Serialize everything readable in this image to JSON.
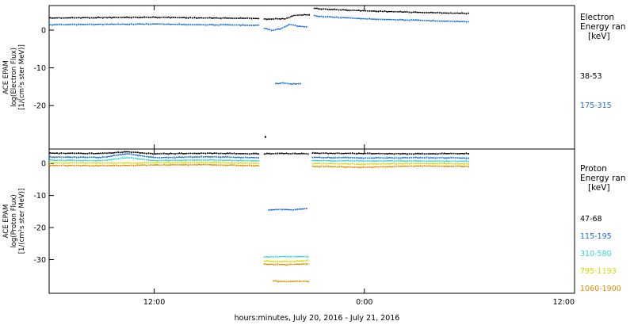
{
  "chart_data": [
    {
      "type": "scatter",
      "ylabel": [
        "ACE EPAM",
        "log(Electron Flux)",
        "[1/(cm²s ster MeV)]"
      ],
      "ylim": [
        -31.5,
        6.5
      ],
      "yticks": [
        0,
        -10,
        -20
      ],
      "legend_title": [
        "Electron",
        "Energy ran",
        "[keV]"
      ],
      "x_ticks": [
        "12:00",
        "0:00",
        "12:00"
      ],
      "series": [
        {
          "name": "38-53",
          "color": "#000000",
          "segments": [
            {
              "x": [
                0.0,
                6.0,
                12.0,
                18.0,
                24.0
              ],
              "y": [
                3.2,
                3.3,
                3.4,
                3.2,
                3.1
              ]
            },
            {
              "x": [
                24.5,
                26.0,
                27.0,
                28.0,
                29.0,
                29.8
              ],
              "y": [
                2.9,
                3.0,
                3.0,
                3.9,
                4.0,
                4.1
              ]
            },
            {
              "x": [
                30.2,
                31.0,
                36.0,
                42.0,
                48.0
              ],
              "y": [
                5.8,
                5.6,
                5.1,
                4.7,
                4.4
              ]
            },
            {
              "x": [
                24.7
              ],
              "y": [
                -28.3
              ]
            }
          ]
        },
        {
          "name": "175-315",
          "color": "#1a6fd0",
          "segments": [
            {
              "x": [
                0.0,
                6.0,
                12.0,
                18.0,
                24.0
              ],
              "y": [
                1.4,
                1.5,
                1.6,
                1.4,
                1.3
              ]
            },
            {
              "x": [
                24.5,
                25.5,
                26.5,
                27.5,
                28.5,
                29.5
              ],
              "y": [
                0.5,
                -0.1,
                0.4,
                1.5,
                1.0,
                0.9
              ]
            },
            {
              "x": [
                30.2,
                31.0,
                36.0,
                42.0,
                48.0
              ],
              "y": [
                3.9,
                3.6,
                3.0,
                2.6,
                2.2
              ]
            },
            {
              "x": [
                25.8,
                26.8,
                27.8,
                28.8
              ],
              "y": [
                -14.2,
                -14.0,
                -14.3,
                -14.1
              ]
            }
          ]
        }
      ]
    },
    {
      "type": "scatter",
      "ylabel": [
        "ACE EPAM",
        "log(Proton Flux)",
        "[1/(cm²s ster MeV)]"
      ],
      "ylim": [
        -40.5,
        4.5
      ],
      "yticks": [
        0,
        -10,
        -20,
        -30
      ],
      "legend_title": [
        "Proton",
        "Energy ran",
        "[keV]"
      ],
      "x_ticks": [
        "12:00",
        "0:00",
        "12:00"
      ],
      "xlabel": "hours:minutes, July 20, 2016 - July 21, 2016",
      "series": [
        {
          "name": "47-68",
          "color": "#000000",
          "segments": [
            {
              "x": [
                0.0,
                6.0,
                9.0,
                12.0,
                18.0,
                24.0
              ],
              "y": [
                3.2,
                3.1,
                3.6,
                3.0,
                3.2,
                3.0
              ]
            },
            {
              "x": [
                24.5,
                27.0,
                29.7
              ],
              "y": [
                3.0,
                3.1,
                3.0
              ]
            },
            {
              "x": [
                30.0,
                36.0,
                42.0,
                48.0
              ],
              "y": [
                3.2,
                3.1,
                3.0,
                3.1
              ]
            }
          ]
        },
        {
          "name": "115-195",
          "color": "#1a6fd0",
          "segments": [
            {
              "x": [
                0.0,
                6.0,
                9.0,
                12.0,
                18.0,
                24.0
              ],
              "y": [
                2.0,
                1.9,
                3.0,
                1.8,
                2.1,
                1.8
              ]
            },
            {
              "x": [
                30.0,
                36.0,
                42.0,
                48.0
              ],
              "y": [
                1.9,
                1.7,
                1.8,
                1.7
              ]
            },
            {
              "x": [
                25.0,
                26.5,
                28.0,
                29.5
              ],
              "y": [
                -14.6,
                -14.3,
                -14.5,
                -14.0
              ]
            }
          ]
        },
        {
          "name": "310-580",
          "color": "#33d4d4",
          "segments": [
            {
              "x": [
                0.0,
                6.0,
                9.0,
                12.0,
                18.0,
                24.0
              ],
              "y": [
                1.0,
                0.9,
                1.8,
                0.9,
                1.1,
                0.8
              ]
            },
            {
              "x": [
                30.0,
                36.0,
                42.0,
                48.0
              ],
              "y": [
                0.9,
                0.8,
                0.8,
                0.7
              ]
            },
            {
              "x": [
                24.5,
                27.0,
                29.7
              ],
              "y": [
                -29.2,
                -29.0,
                -29.1
              ]
            }
          ]
        },
        {
          "name": "795-1193",
          "color": "#d8d800",
          "segments": [
            {
              "x": [
                0.0,
                6.0,
                12.0,
                18.0,
                24.0
              ],
              "y": [
                0.2,
                0.1,
                0.2,
                0.3,
                0.0
              ]
            },
            {
              "x": [
                30.0,
                36.0,
                42.0,
                48.0
              ],
              "y": [
                0.0,
                -0.2,
                0.0,
                -0.1
              ]
            },
            {
              "x": [
                24.5,
                27.0,
                29.7
              ],
              "y": [
                -30.4,
                -30.6,
                -30.3
              ]
            }
          ]
        },
        {
          "name": "1060-1900",
          "color": "#e08a00",
          "segments": [
            {
              "x": [
                0.0,
                6.0,
                12.0,
                18.0,
                24.0
              ],
              "y": [
                -0.6,
                -0.7,
                -0.5,
                -0.4,
                -0.7
              ]
            },
            {
              "x": [
                30.0,
                36.0,
                42.0,
                48.0
              ],
              "y": [
                -0.9,
                -1.2,
                -0.8,
                -0.9
              ]
            },
            {
              "x": [
                24.5,
                27.0,
                29.7
              ],
              "y": [
                -31.4,
                -31.6,
                -31.3
              ]
            },
            {
              "x": [
                25.5,
                27.0,
                28.5,
                29.7
              ],
              "y": [
                -36.6,
                -36.9,
                -36.7,
                -36.8
              ]
            }
          ]
        }
      ]
    }
  ]
}
